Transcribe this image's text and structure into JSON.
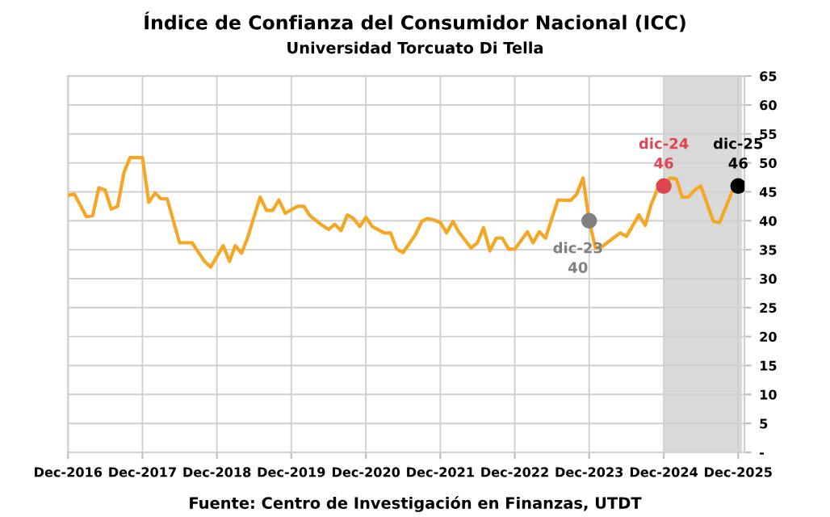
{
  "chart_data": {
    "type": "line",
    "title": "Índice de Confianza del Consumidor Nacional (ICC)",
    "subtitle": "Universidad Torcuato Di Tella",
    "annotations": [
      "Fuente: Centro de Investigación en Finanzas, UTDT"
    ],
    "series": [
      {
        "color": "#f5a623",
        "marker": "none",
        "x": [
          "2016-12",
          "2017-01",
          "2017-03",
          "2017-04",
          "2017-05",
          "2017-06",
          "2017-07",
          "2017-08",
          "2017-09",
          "2017-10",
          "2017-12",
          "2018-01",
          "2018-02",
          "2018-03",
          "2018-04",
          "2018-06",
          "2018-08",
          "2018-10",
          "2018-11",
          "2019-01",
          "2019-02",
          "2019-03",
          "2019-04",
          "2019-05",
          "2019-07",
          "2019-08",
          "2019-09",
          "2019-10",
          "2019-11",
          "2020-01",
          "2020-02",
          "2020-03",
          "2020-05",
          "2020-06",
          "2020-07",
          "2020-08",
          "2020-09",
          "2020-10",
          "2020-11",
          "2020-12",
          "2021-01",
          "2021-03",
          "2021-04",
          "2021-05",
          "2021-06",
          "2021-08",
          "2021-09",
          "2021-10",
          "2021-11",
          "2021-12",
          "2022-01",
          "2022-02",
          "2022-03",
          "2022-05",
          "2022-06",
          "2022-07",
          "2022-08",
          "2022-09",
          "2022-10",
          "2022-11",
          "2022-12",
          "2023-02",
          "2023-03",
          "2023-04",
          "2023-05",
          "2023-06",
          "2023-07",
          "2023-09",
          "2023-10",
          "2023-11",
          "2023-12",
          "2024-01",
          "2024-02",
          "2024-05",
          "2024-06",
          "2024-08",
          "2024-09",
          "2024-10",
          "2024-11",
          "2024-12",
          "2025-01",
          "2025-02",
          "2025-03",
          "2025-04",
          "2025-05",
          "2025-06",
          "2025-08",
          "2025-09",
          "2025-11",
          "2025-12"
        ],
        "values": [
          44.4,
          44.6,
          40.7,
          40.9,
          45.7,
          45.3,
          42.0,
          42.5,
          48.3,
          50.9,
          50.9,
          43.2,
          44.8,
          43.8,
          43.8,
          36.2,
          36.2,
          33.0,
          32.0,
          35.7,
          33.0,
          35.7,
          34.4,
          37.1,
          44.1,
          41.8,
          41.8,
          43.6,
          41.3,
          42.5,
          42.5,
          40.9,
          39.2,
          38.5,
          39.4,
          38.3,
          41.0,
          40.4,
          39.0,
          40.6,
          39.0,
          37.9,
          37.9,
          35.1,
          34.5,
          37.6,
          39.9,
          40.4,
          40.1,
          39.7,
          37.9,
          39.9,
          38.1,
          35.3,
          36.2,
          38.8,
          34.8,
          37.0,
          37.0,
          35.1,
          35.1,
          38.1,
          36.2,
          38.1,
          37.0,
          40.4,
          43.6,
          43.5,
          44.6,
          47.4,
          40,
          35.3,
          35.5,
          37.9,
          37.3,
          41.0,
          39.2,
          42.9,
          45.5,
          46,
          47.4,
          47.2,
          44.1,
          44.1,
          45.3,
          46.0,
          39.9,
          39.7,
          45.0,
          46
        ]
      },
      {
        "type": "scatter",
        "marker": "circle",
        "x": [
          "2023-12",
          "2024-12",
          "2025-12"
        ],
        "values": [
          40,
          46,
          46
        ],
        "colors": [
          "#808080",
          "#e0454f",
          "#000000"
        ],
        "value_labels": [
          "dic-23\n40",
          "dic-24\n46",
          "dic-25\n46"
        ]
      }
    ],
    "xlim": [
      "2016-12-01",
      "2026-01-01"
    ],
    "xticks": [
      {
        "value": "2016-12",
        "label": "Dec-2016"
      },
      {
        "value": "2017-12",
        "label": "Dec-2017"
      },
      {
        "value": "2018-12",
        "label": "Dec-2018"
      },
      {
        "value": "2019-12",
        "label": "Dec-2019"
      },
      {
        "value": "2020-12",
        "label": "Dec-2020"
      },
      {
        "value": "2021-12",
        "label": "Dec-2021"
      },
      {
        "value": "2022-12",
        "label": "Dec-2022"
      },
      {
        "value": "2023-12",
        "label": "Dec-2023"
      },
      {
        "value": "2024-12",
        "label": "Dec-2024"
      },
      {
        "value": "2025-12",
        "label": "Dec-2025"
      }
    ],
    "ylim": [
      0,
      65
    ],
    "yticks": [
      {
        "value": 0,
        "label": "-"
      },
      5,
      10,
      15,
      20,
      25,
      30,
      35,
      40,
      45,
      50,
      55,
      60,
      65
    ],
    "bands": [
      {
        "axis": "x",
        "from": "2024-12",
        "to": "2025-12-20",
        "color": "#d9d9d9"
      }
    ],
    "grid": true,
    "legend": false,
    "line_style": "solid"
  }
}
